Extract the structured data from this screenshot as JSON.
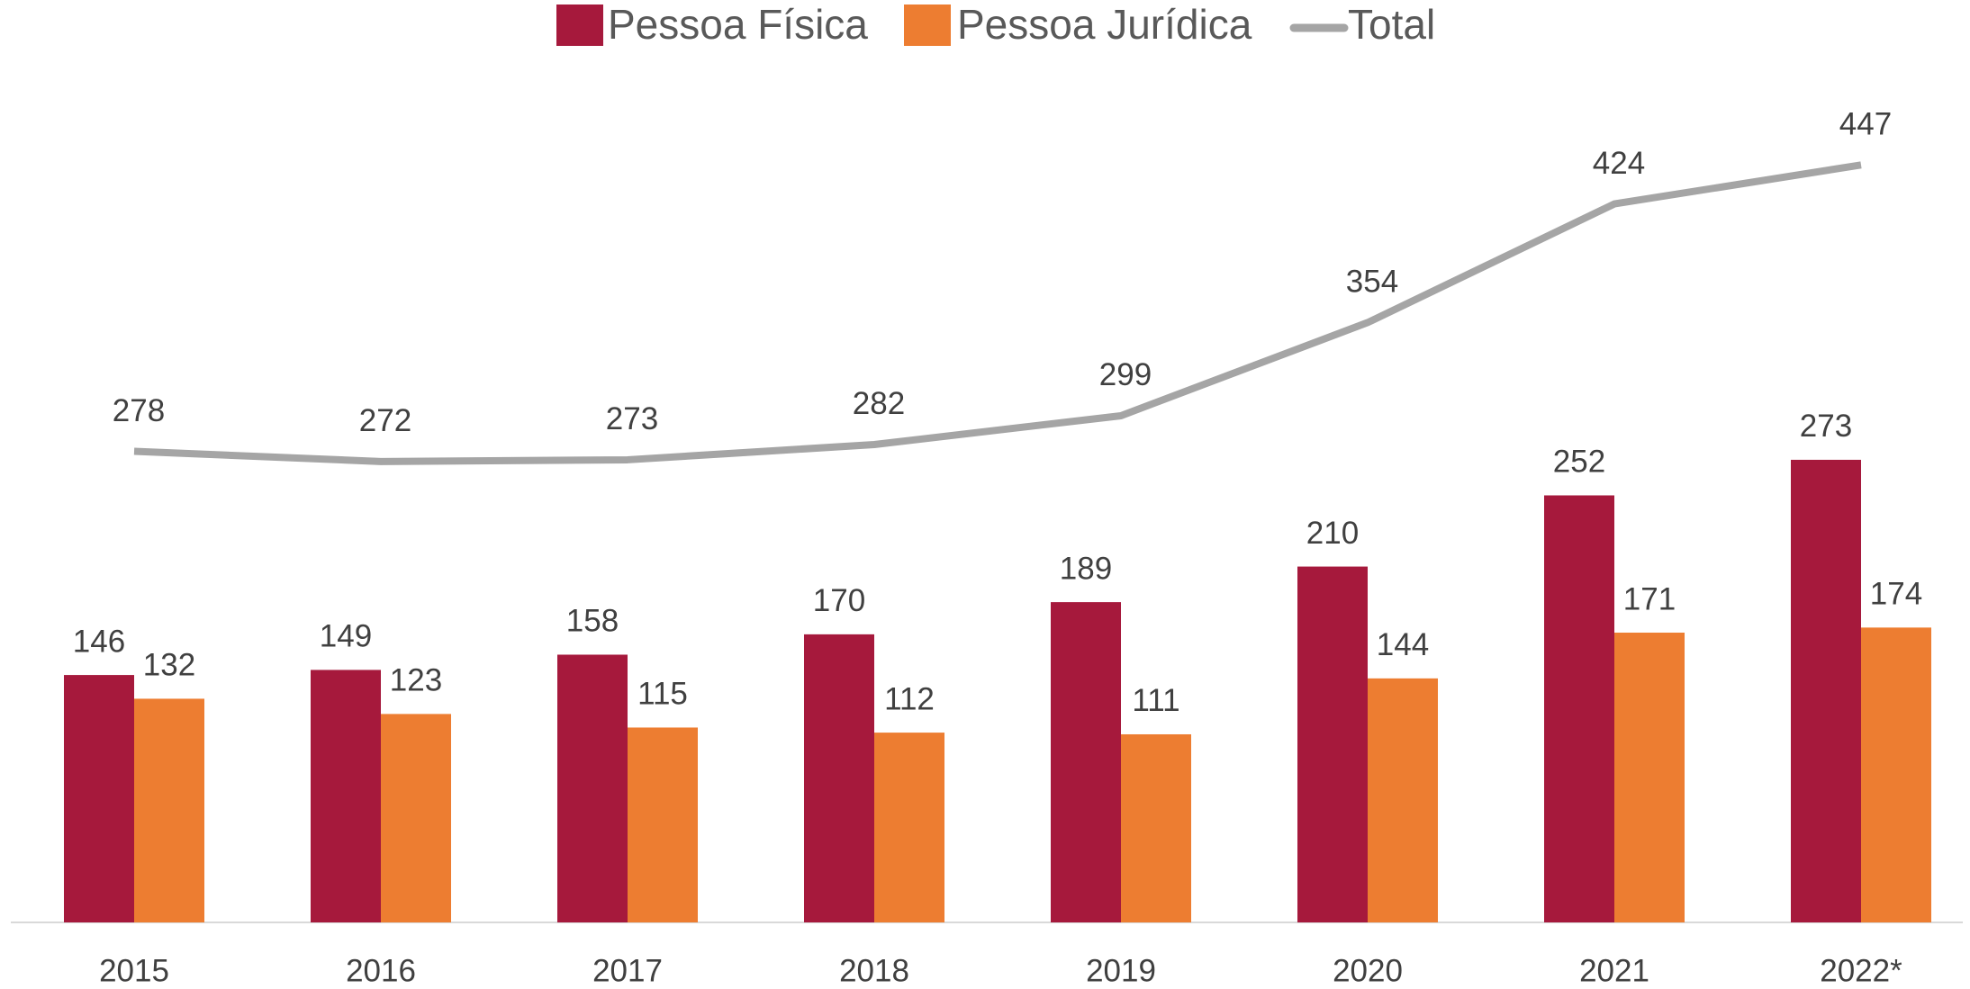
{
  "chart_data": {
    "type": "bar",
    "categories": [
      "2015",
      "2016",
      "2017",
      "2018",
      "2019",
      "2020",
      "2021",
      "2022*"
    ],
    "series": [
      {
        "name": "Pessoa Física",
        "color": "#A6193C",
        "values": [
          146,
          149,
          158,
          170,
          189,
          210,
          252,
          273
        ]
      },
      {
        "name": "Pessoa Jurídica",
        "color": "#ED7D31",
        "values": [
          132,
          123,
          115,
          112,
          111,
          144,
          171,
          174
        ]
      },
      {
        "name": "Total",
        "type": "line",
        "color": "#A5A5A5",
        "values": [
          278,
          272,
          273,
          282,
          299,
          354,
          424,
          447
        ]
      }
    ],
    "legend": "top"
  }
}
